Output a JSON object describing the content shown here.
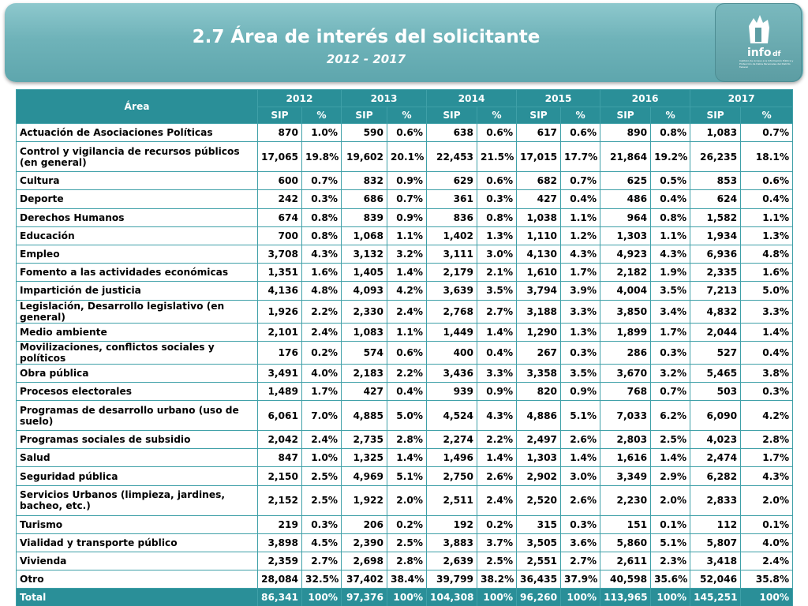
{
  "header": {
    "title": "2.7 Área de interés del solicitante",
    "subtitle": "2012 - 2017",
    "logo_text": "info",
    "logo_suffix": "df",
    "logo_caption": "Instituto de Acceso a la Información Pública y Protección de Datos Personales del Distrito Federal"
  },
  "table": {
    "area_header": "Área",
    "years": [
      "2012",
      "2013",
      "2014",
      "2015",
      "2016",
      "2017"
    ],
    "sub_sip": "SIP",
    "sub_pct": "%",
    "rows": [
      {
        "area": "Actuación de Asociaciones Políticas",
        "tall": false,
        "values": [
          "870",
          "1.0%",
          "590",
          "0.6%",
          "638",
          "0.6%",
          "617",
          "0.6%",
          "890",
          "0.8%",
          "1,083",
          "0.7%"
        ]
      },
      {
        "area": "Control y vigilancia de recursos públicos (en general)",
        "tall": true,
        "values": [
          "17,065",
          "19.8%",
          "19,602",
          "20.1%",
          "22,453",
          "21.5%",
          "17,015",
          "17.7%",
          "21,864",
          "19.2%",
          "26,235",
          "18.1%"
        ]
      },
      {
        "area": "Cultura",
        "tall": false,
        "values": [
          "600",
          "0.7%",
          "832",
          "0.9%",
          "629",
          "0.6%",
          "682",
          "0.7%",
          "625",
          "0.5%",
          "853",
          "0.6%"
        ]
      },
      {
        "area": "Deporte",
        "tall": false,
        "values": [
          "242",
          "0.3%",
          "686",
          "0.7%",
          "361",
          "0.3%",
          "427",
          "0.4%",
          "486",
          "0.4%",
          "624",
          "0.4%"
        ]
      },
      {
        "area": "Derechos Humanos",
        "tall": false,
        "values": [
          "674",
          "0.8%",
          "839",
          "0.9%",
          "836",
          "0.8%",
          "1,038",
          "1.1%",
          "964",
          "0.8%",
          "1,582",
          "1.1%"
        ]
      },
      {
        "area": "Educación",
        "tall": false,
        "values": [
          "700",
          "0.8%",
          "1,068",
          "1.1%",
          "1,402",
          "1.3%",
          "1,110",
          "1.2%",
          "1,303",
          "1.1%",
          "1,934",
          "1.3%"
        ]
      },
      {
        "area": "Empleo",
        "tall": false,
        "values": [
          "3,708",
          "4.3%",
          "3,132",
          "3.2%",
          "3,111",
          "3.0%",
          "4,130",
          "4.3%",
          "4,923",
          "4.3%",
          "6,936",
          "4.8%"
        ]
      },
      {
        "area": "Fomento a las actividades económicas",
        "tall": false,
        "values": [
          "1,351",
          "1.6%",
          "1,405",
          "1.4%",
          "2,179",
          "2.1%",
          "1,610",
          "1.7%",
          "2,182",
          "1.9%",
          "2,335",
          "1.6%"
        ]
      },
      {
        "area": "Impartición de justicia",
        "tall": false,
        "values": [
          "4,136",
          "4.8%",
          "4,093",
          "4.2%",
          "3,639",
          "3.5%",
          "3,794",
          "3.9%",
          "4,004",
          "3.5%",
          "7,213",
          "5.0%"
        ]
      },
      {
        "area": "Legislación, Desarrollo legislativo (en general)",
        "tall": false,
        "values": [
          "1,926",
          "2.2%",
          "2,330",
          "2.4%",
          "2,768",
          "2.7%",
          "3,188",
          "3.3%",
          "3,850",
          "3.4%",
          "4,832",
          "3.3%"
        ]
      },
      {
        "area": "Medio ambiente",
        "tall": false,
        "values": [
          "2,101",
          "2.4%",
          "1,083",
          "1.1%",
          "1,449",
          "1.4%",
          "1,290",
          "1.3%",
          "1,899",
          "1.7%",
          "2,044",
          "1.4%"
        ]
      },
      {
        "area": "Movilizaciones, conflictos sociales y políticos",
        "tall": false,
        "values": [
          "176",
          "0.2%",
          "574",
          "0.6%",
          "400",
          "0.4%",
          "267",
          "0.3%",
          "286",
          "0.3%",
          "527",
          "0.4%"
        ]
      },
      {
        "area": "Obra pública",
        "tall": false,
        "values": [
          "3,491",
          "4.0%",
          "2,183",
          "2.2%",
          "3,436",
          "3.3%",
          "3,358",
          "3.5%",
          "3,670",
          "3.2%",
          "5,465",
          "3.8%"
        ]
      },
      {
        "area": "Procesos electorales",
        "tall": false,
        "values": [
          "1,489",
          "1.7%",
          "427",
          "0.4%",
          "939",
          "0.9%",
          "820",
          "0.9%",
          "768",
          "0.7%",
          "503",
          "0.3%"
        ]
      },
      {
        "area": "Programas de desarrollo urbano (uso de suelo)",
        "tall": true,
        "values": [
          "6,061",
          "7.0%",
          "4,885",
          "5.0%",
          "4,524",
          "4.3%",
          "4,886",
          "5.1%",
          "7,033",
          "6.2%",
          "6,090",
          "4.2%"
        ]
      },
      {
        "area": "Programas sociales de subsidio",
        "tall": false,
        "values": [
          "2,042",
          "2.4%",
          "2,735",
          "2.8%",
          "2,274",
          "2.2%",
          "2,497",
          "2.6%",
          "2,803",
          "2.5%",
          "4,023",
          "2.8%"
        ]
      },
      {
        "area": "Salud",
        "tall": false,
        "values": [
          "847",
          "1.0%",
          "1,325",
          "1.4%",
          "1,496",
          "1.4%",
          "1,303",
          "1.4%",
          "1,616",
          "1.4%",
          "2,474",
          "1.7%"
        ]
      },
      {
        "area": "Seguridad pública",
        "tall": false,
        "values": [
          "2,150",
          "2.5%",
          "4,969",
          "5.1%",
          "2,750",
          "2.6%",
          "2,902",
          "3.0%",
          "3,349",
          "2.9%",
          "6,282",
          "4.3%"
        ]
      },
      {
        "area": "Servicios Urbanos (limpieza, jardines, bacheo, etc.)",
        "tall": true,
        "values": [
          "2,152",
          "2.5%",
          "1,922",
          "2.0%",
          "2,511",
          "2.4%",
          "2,520",
          "2.6%",
          "2,230",
          "2.0%",
          "2,833",
          "2.0%"
        ]
      },
      {
        "area": "Turismo",
        "tall": false,
        "values": [
          "219",
          "0.3%",
          "206",
          "0.2%",
          "192",
          "0.2%",
          "315",
          "0.3%",
          "151",
          "0.1%",
          "112",
          "0.1%"
        ]
      },
      {
        "area": "Vialidad y transporte público",
        "tall": false,
        "values": [
          "3,898",
          "4.5%",
          "2,390",
          "2.5%",
          "3,883",
          "3.7%",
          "3,505",
          "3.6%",
          "5,860",
          "5.1%",
          "5,807",
          "4.0%"
        ]
      },
      {
        "area": "Vivienda",
        "tall": false,
        "values": [
          "2,359",
          "2.7%",
          "2,698",
          "2.8%",
          "2,639",
          "2.5%",
          "2,551",
          "2.7%",
          "2,611",
          "2.3%",
          "3,418",
          "2.4%"
        ]
      },
      {
        "area": "Otro",
        "tall": false,
        "values": [
          "28,084",
          "32.5%",
          "37,402",
          "38.4%",
          "39,799",
          "38.2%",
          "36,435",
          "37.9%",
          "40,598",
          "35.6%",
          "52,046",
          "35.8%"
        ]
      }
    ],
    "total": {
      "area": "Total",
      "values": [
        "86,341",
        "100%",
        "97,376",
        "100%",
        "104,308",
        "100%",
        "96,260",
        "100%",
        "113,965",
        "100%",
        "145,251",
        "100%"
      ]
    }
  },
  "colors": {
    "header_teal": "#6fb3b9",
    "table_teal": "#2a8f98",
    "border": "#3fa0a8"
  }
}
